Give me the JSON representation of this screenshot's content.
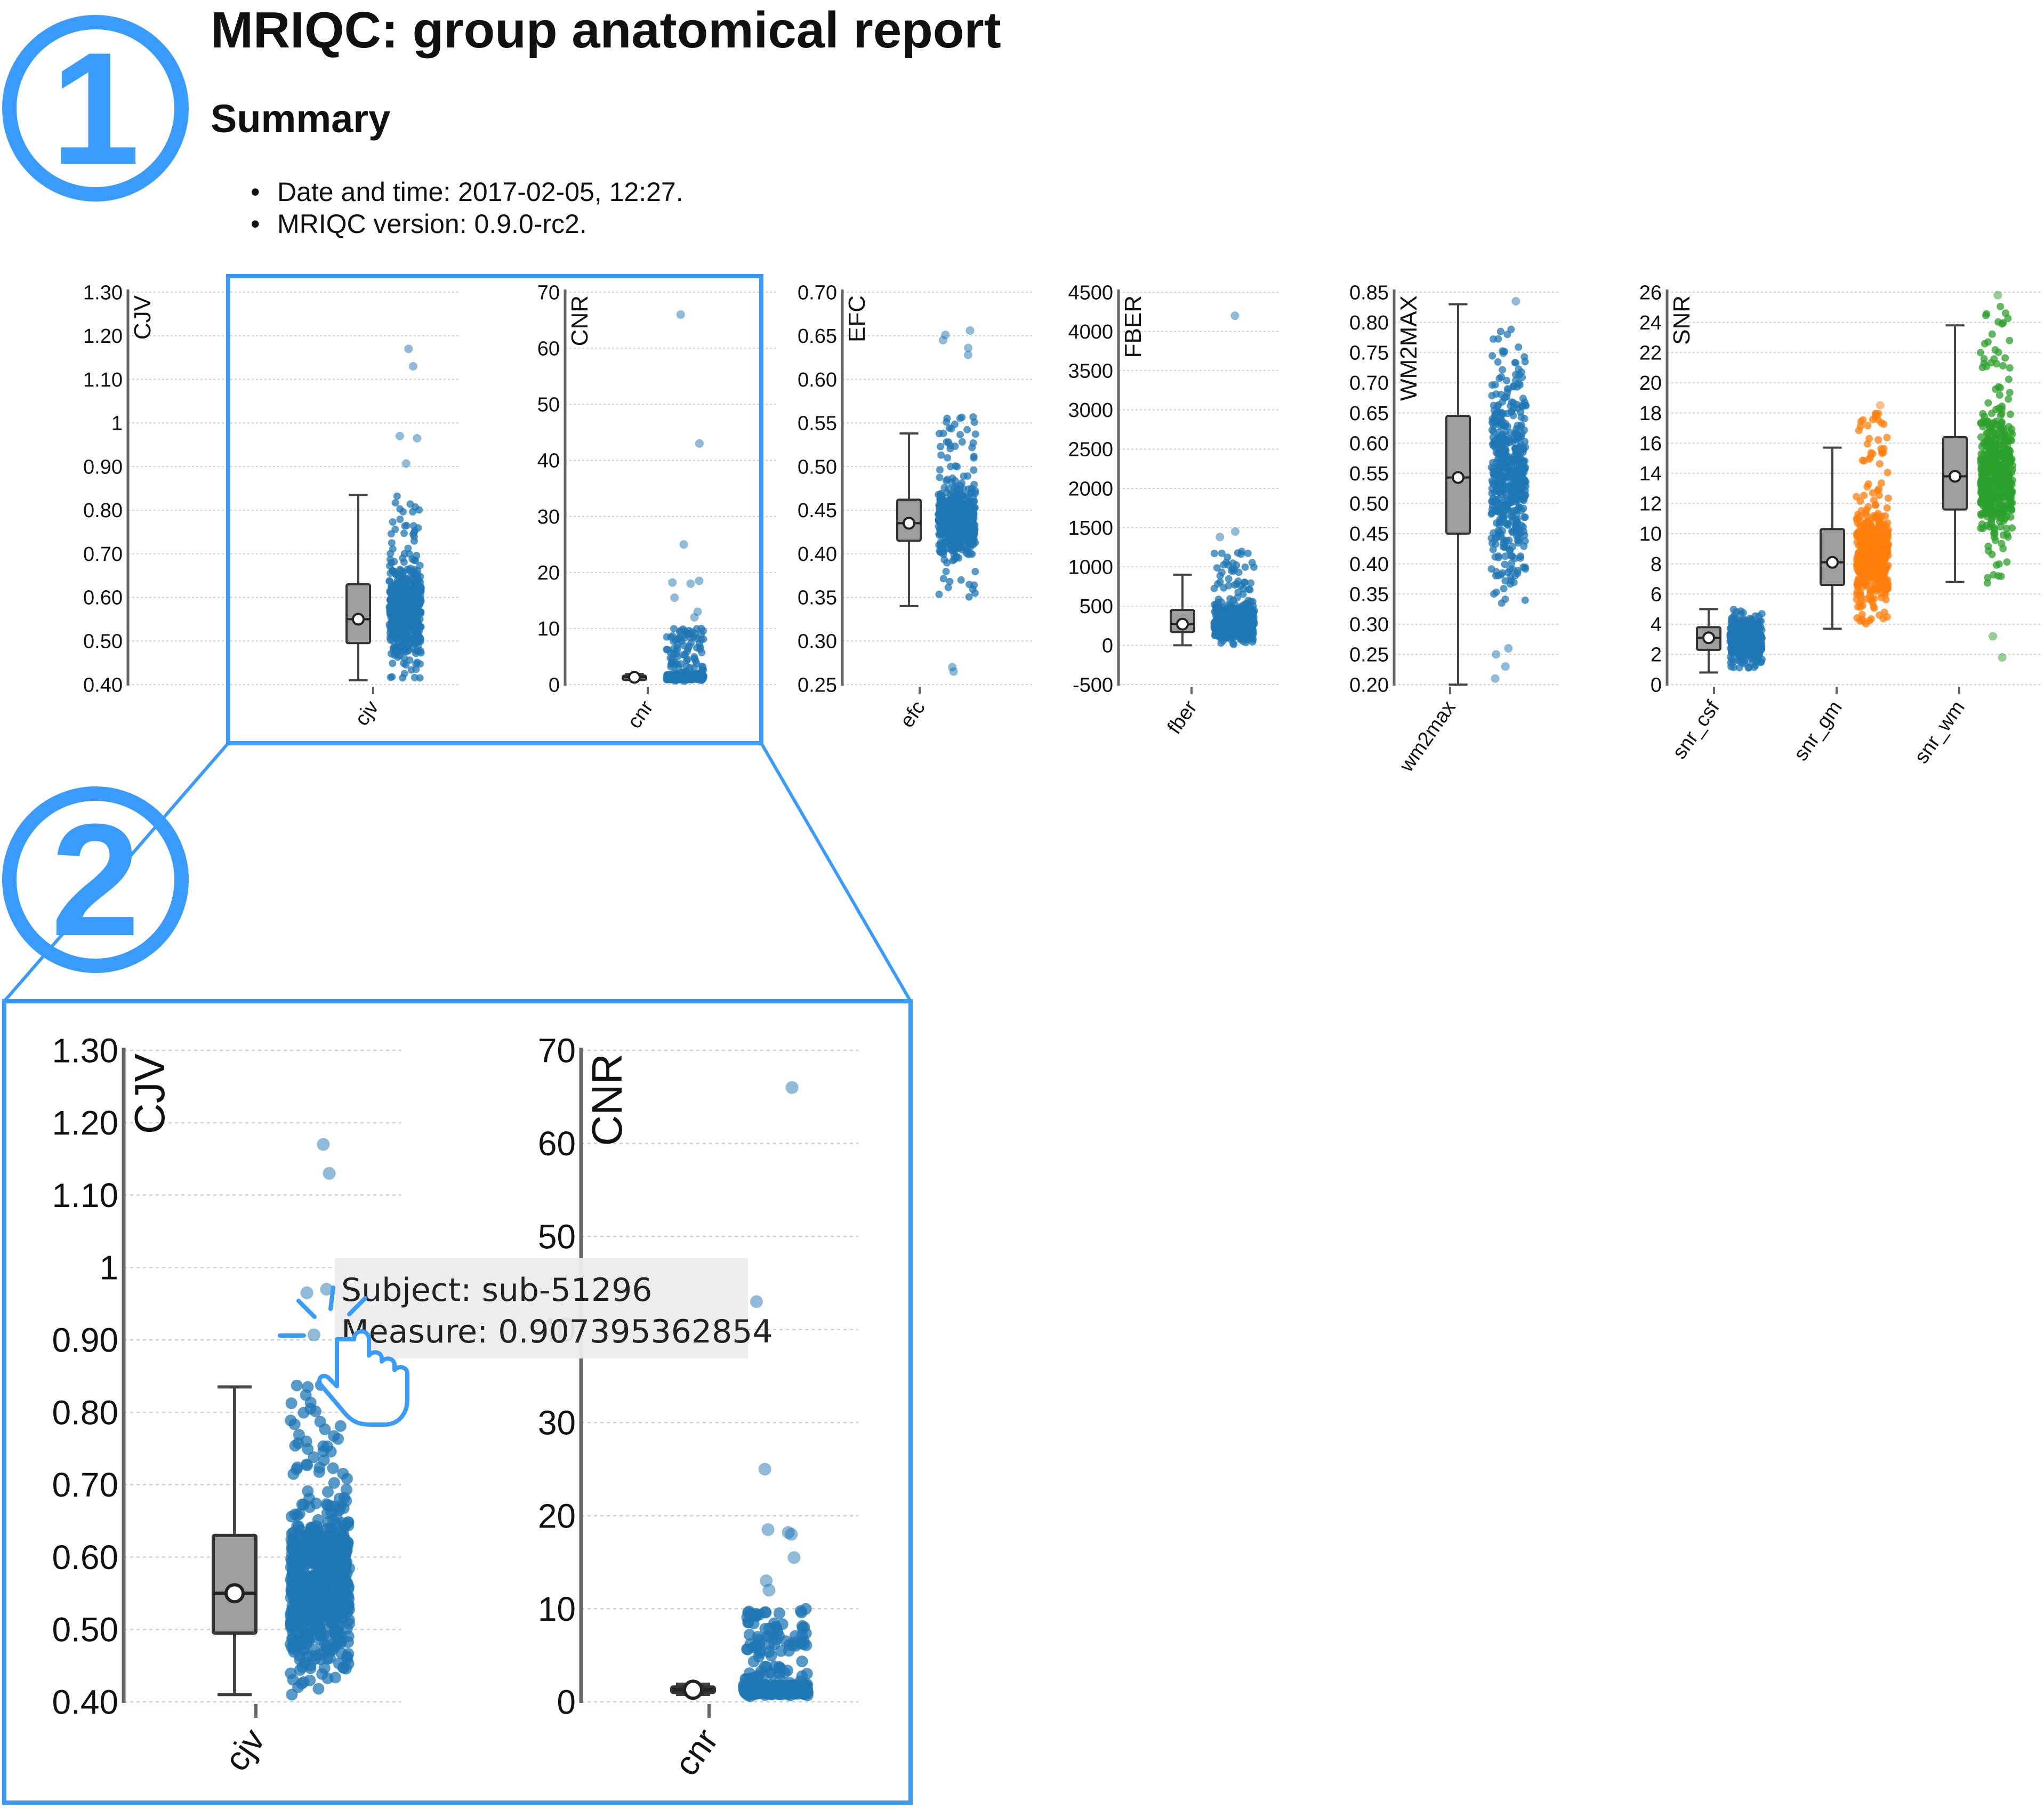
{
  "page": {
    "title": "MRIQC: group anatomical report",
    "summary_heading": "Summary",
    "summary_items": [
      "Date and time: 2017-02-05, 12:27.",
      "MRIQC version: 0.9.0-rc2."
    ]
  },
  "badges": {
    "first": "1",
    "second": "2"
  },
  "colors": {
    "accent": "#3a9bff",
    "points_blue": "#1f77b4",
    "points_orange": "#ff7f0e",
    "points_green": "#2ca02c",
    "box_fill": "#9e9e9e"
  },
  "tooltip": {
    "subject": "Subject: sub-51296",
    "measure": "Measure: 0.907395362854"
  },
  "pointer_icon": "hand-pointer-icon",
  "chart_data": [
    {
      "type": "scatter",
      "ylabel": "CJV",
      "ylim": [
        0.4,
        1.3
      ],
      "yticks": [
        "1.30",
        "1.20",
        "1.10",
        "1",
        "0.90",
        "0.80",
        "0.70",
        "0.60",
        "0.50",
        "0.40"
      ],
      "grid": true,
      "series": [
        {
          "name": "cjv",
          "color": "points_blue",
          "box": {
            "min": 0.41,
            "q1": 0.495,
            "median": 0.55,
            "q3": 0.63,
            "max": 0.835
          },
          "outliers": [
            1.17,
            1.13,
            0.97,
            0.965,
            0.907
          ],
          "bulk_range": [
            0.41,
            0.84
          ]
        }
      ]
    },
    {
      "type": "scatter",
      "ylabel": "CNR",
      "ylim": [
        0,
        70
      ],
      "yticks": [
        "70",
        "60",
        "50",
        "40",
        "30",
        "20",
        "10",
        "0"
      ],
      "grid": true,
      "series": [
        {
          "name": "cnr",
          "color": "points_blue",
          "box": {
            "min": 0.8,
            "q1": 1.0,
            "median": 1.3,
            "q3": 1.6,
            "max": 1.9
          },
          "outliers": [
            66,
            43,
            25,
            18.5,
            18.2,
            18,
            15.5,
            13,
            12
          ],
          "bulk_range": [
            0.5,
            10
          ]
        }
      ]
    },
    {
      "type": "scatter",
      "ylabel": "EFC",
      "ylim": [
        0.25,
        0.7
      ],
      "yticks": [
        "0.70",
        "0.65",
        "0.60",
        "0.55",
        "0.50",
        "0.45",
        "0.40",
        "0.35",
        "0.30",
        "0.25"
      ],
      "grid": true,
      "series": [
        {
          "name": "efc",
          "color": "points_blue",
          "box": {
            "min": 0.34,
            "q1": 0.415,
            "median": 0.435,
            "q3": 0.462,
            "max": 0.538
          },
          "outliers": [
            0.656,
            0.651,
            0.645,
            0.636,
            0.628,
            0.27,
            0.265
          ],
          "bulk_range": [
            0.35,
            0.56
          ]
        }
      ]
    },
    {
      "type": "scatter",
      "ylabel": "FBER",
      "ylim": [
        -500,
        4500
      ],
      "yticks": [
        "4500",
        "4000",
        "3500",
        "3000",
        "2500",
        "2000",
        "1500",
        "1000",
        "500",
        "0",
        "-500"
      ],
      "grid": true,
      "series": [
        {
          "name": "fber",
          "color": "points_blue",
          "box": {
            "min": 0,
            "q1": 170,
            "median": 270,
            "q3": 450,
            "max": 900
          },
          "outliers": [
            4200,
            1450,
            1380
          ],
          "bulk_range": [
            0,
            1200
          ]
        }
      ]
    },
    {
      "type": "scatter",
      "ylabel": "WM2MAX",
      "ylim": [
        0.2,
        0.85
      ],
      "yticks": [
        "0.85",
        "0.80",
        "0.75",
        "0.70",
        "0.65",
        "0.60",
        "0.55",
        "0.50",
        "0.45",
        "0.40",
        "0.35",
        "0.30",
        "0.25",
        "0.20"
      ],
      "grid": true,
      "series": [
        {
          "name": "wm2max",
          "color": "points_blue",
          "box": {
            "min": 0.2,
            "q1": 0.45,
            "median": 0.543,
            "q3": 0.645,
            "max": 0.83
          },
          "outliers": [
            0.835,
            0.26,
            0.25,
            0.23,
            0.21
          ],
          "bulk_range": [
            0.33,
            0.79
          ]
        }
      ]
    },
    {
      "type": "scatter",
      "ylabel": "SNR",
      "ylim": [
        0,
        26
      ],
      "yticks": [
        "26",
        "24",
        "22",
        "20",
        "18",
        "16",
        "14",
        "12",
        "10",
        "8",
        "6",
        "4",
        "2",
        "0"
      ],
      "grid": true,
      "series": [
        {
          "name": "snr_csf",
          "color": "points_blue",
          "box": {
            "min": 0.8,
            "q1": 2.3,
            "median": 3.1,
            "q3": 3.8,
            "max": 5.0
          },
          "outliers": [],
          "bulk_range": [
            1.0,
            5.0
          ]
        },
        {
          "name": "snr_gm",
          "color": "points_orange",
          "box": {
            "min": 3.7,
            "q1": 6.6,
            "median": 8.1,
            "q3": 10.3,
            "max": 15.7
          },
          "outliers": [
            18.5
          ],
          "bulk_range": [
            4.0,
            18.0
          ]
        },
        {
          "name": "snr_wm",
          "color": "points_green",
          "box": {
            "min": 6.8,
            "q1": 11.6,
            "median": 13.8,
            "q3": 16.4,
            "max": 23.8
          },
          "outliers": [
            25.8,
            3.2,
            1.8
          ],
          "bulk_range": [
            6.5,
            25.2
          ]
        }
      ]
    }
  ]
}
